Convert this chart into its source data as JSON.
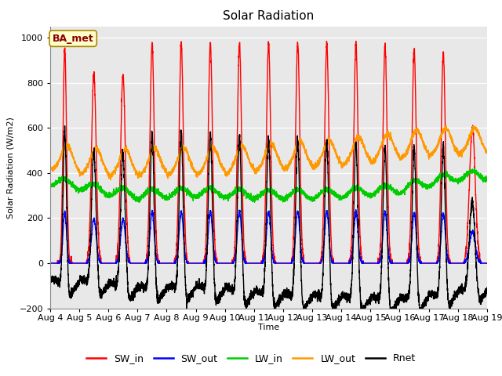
{
  "title": "Solar Radiation",
  "ylabel": "Solar Radiation (W/m2)",
  "xlabel": "Time",
  "ylim": [
    -200,
    1050
  ],
  "yticks": [
    -200,
    0,
    200,
    400,
    600,
    800,
    1000
  ],
  "annotation": "BA_met",
  "legend": [
    "SW_in",
    "SW_out",
    "LW_in",
    "LW_out",
    "Rnet"
  ],
  "colors": {
    "SW_in": "#ff0000",
    "SW_out": "#0000ff",
    "LW_in": "#00cc00",
    "LW_out": "#ff9900",
    "Rnet": "#000000"
  },
  "start_day": 4,
  "end_day": 19,
  "month": "Aug",
  "plot_bg_color": "#e8e8e8",
  "n_days": 15,
  "pts_per_day": 288
}
